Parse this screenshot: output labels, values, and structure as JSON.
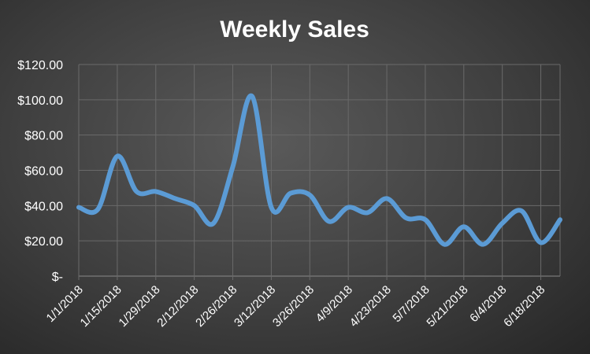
{
  "chart_data": {
    "type": "line",
    "title": "Weekly Sales",
    "xlabel": "",
    "ylabel": "",
    "ylim": [
      0,
      120
    ],
    "y_ticks": [
      0,
      20,
      40,
      60,
      80,
      100,
      120
    ],
    "y_tick_labels": [
      "$-",
      "$20.00",
      "$40.00",
      "$60.00",
      "$80.00",
      "$100.00",
      "$120.00"
    ],
    "x_tick_labels": [
      "1/1/2018",
      "1/15/2018",
      "1/29/2018",
      "2/12/2018",
      "2/26/2018",
      "3/12/2018",
      "3/26/2018",
      "4/9/2018",
      "4/23/2018",
      "5/7/2018",
      "5/21/2018",
      "6/4/2018",
      "6/18/2018"
    ],
    "grid": true,
    "legend": "none",
    "series": [
      {
        "color": "#5b9bd5",
        "x": [
          "1/1/2018",
          "1/8/2018",
          "1/15/2018",
          "1/22/2018",
          "1/29/2018",
          "2/5/2018",
          "2/12/2018",
          "2/19/2018",
          "2/26/2018",
          "3/5/2018",
          "3/12/2018",
          "3/19/2018",
          "3/26/2018",
          "4/2/2018",
          "4/9/2018",
          "4/16/2018",
          "4/23/2018",
          "4/30/2018",
          "5/7/2018",
          "5/14/2018",
          "5/21/2018",
          "5/28/2018",
          "6/4/2018",
          "6/11/2018",
          "6/18/2018",
          "6/25/2018"
        ],
        "values": [
          39,
          38,
          68,
          48,
          48,
          44,
          40,
          30,
          62,
          102,
          39,
          47,
          46,
          31,
          39,
          36,
          44,
          33,
          32,
          18,
          28,
          18,
          30,
          37,
          19,
          32
        ]
      }
    ]
  }
}
